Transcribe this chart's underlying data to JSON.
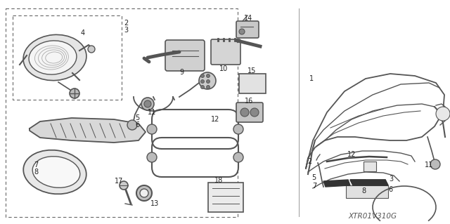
{
  "bg_color": "#ffffff",
  "line_color": "#555555",
  "dark_color": "#333333",
  "label_color": "#222222",
  "watermark": "XTR01V310G",
  "figsize": [
    6.4,
    3.19
  ],
  "dpi": 100
}
